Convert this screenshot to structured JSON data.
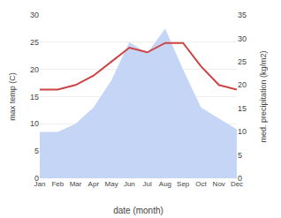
{
  "chart_data": {
    "type": "area",
    "categories": [
      "Jan",
      "Feb",
      "Mar",
      "Apr",
      "May",
      "Jun",
      "Jul",
      "Aug",
      "Sep",
      "Oct",
      "Nov",
      "Dec"
    ],
    "series": [
      {
        "type": "area",
        "axis": "y",
        "color": "#c5d5f5",
        "values": [
          8.5,
          8.5,
          10,
          13,
          18,
          25,
          23,
          27.5,
          20,
          13,
          11,
          9
        ]
      },
      {
        "type": "line",
        "axis": "y2",
        "color": "#cc4444",
        "values": [
          19,
          19,
          20,
          22,
          25,
          28,
          27,
          29,
          29,
          24,
          20,
          19
        ]
      }
    ],
    "xlabel": "date (month)",
    "ylabel": "max temp (C)",
    "y2label": "med. precipitation (kg/m2)",
    "ylim": [
      0,
      30
    ],
    "yticks": [
      0,
      5,
      10,
      15,
      20,
      25,
      30
    ],
    "y2lim": [
      0,
      35
    ],
    "y2ticks": [
      0,
      5,
      10,
      15,
      20,
      25,
      30,
      35
    ],
    "grid": true
  }
}
